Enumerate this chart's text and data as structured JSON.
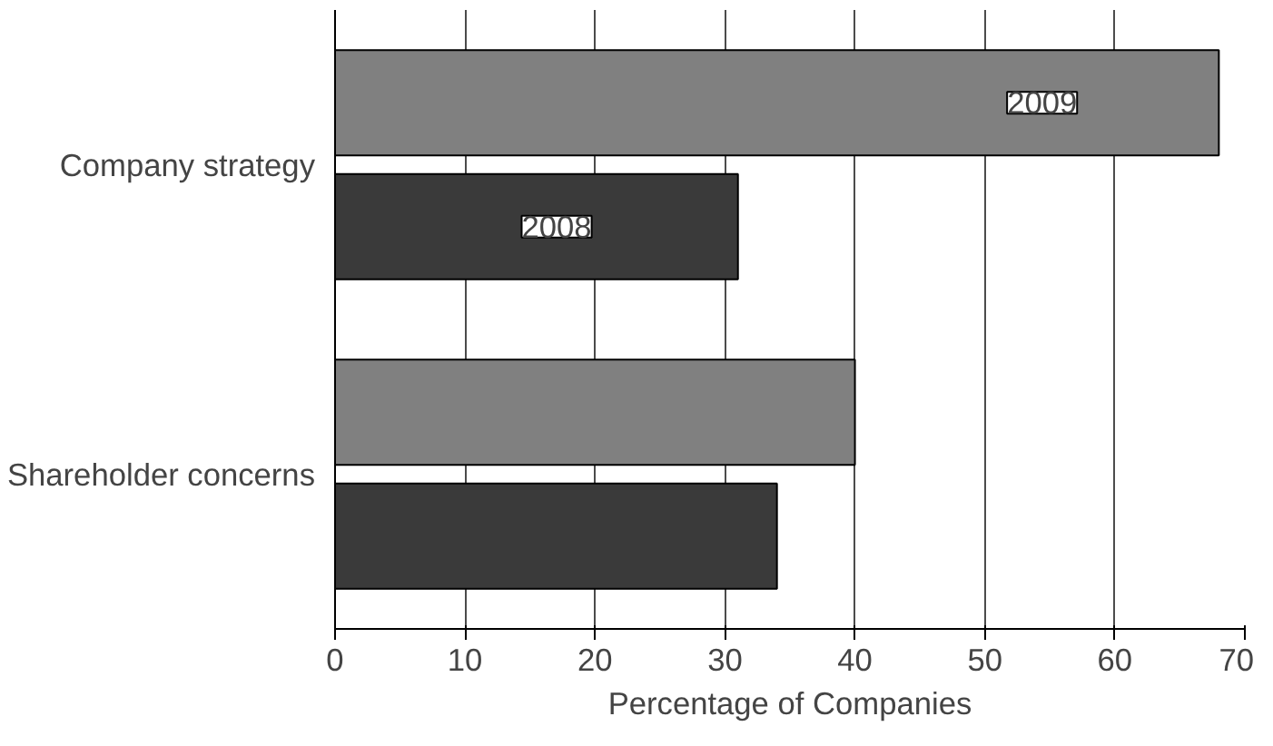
{
  "chart_data": {
    "type": "bar",
    "orientation": "horizontal",
    "xlabel": "Percentage of Companies",
    "categories": [
      "Company strategy",
      "Shareholder concerns"
    ],
    "series": [
      {
        "name": "2009",
        "color": "#808080",
        "values": [
          68,
          40
        ]
      },
      {
        "name": "2008",
        "color": "#3a3a3a",
        "values": [
          31,
          34
        ]
      }
    ],
    "xlim": [
      0,
      70
    ],
    "xticks": [
      0,
      10,
      20,
      30,
      40,
      50,
      60,
      70
    ],
    "grid": "x"
  }
}
